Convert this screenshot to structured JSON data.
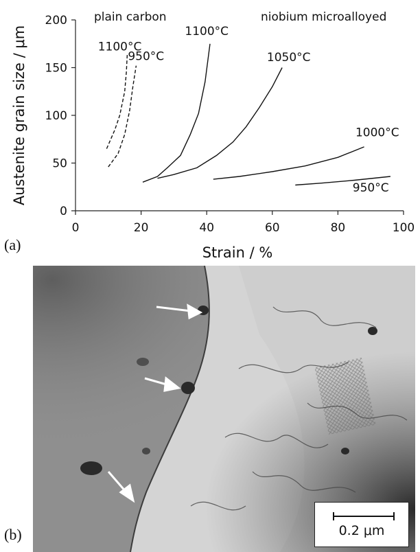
{
  "panels": {
    "a_label": "(a)",
    "b_label": "(b)"
  },
  "chart_data": {
    "type": "line",
    "title": "",
    "xlabel": "Strain / %",
    "ylabel": "Austenite grain size / μm",
    "xlim": [
      0,
      100
    ],
    "ylim": [
      0,
      200
    ],
    "xticks": [
      0,
      20,
      40,
      60,
      80,
      100
    ],
    "yticks": [
      0,
      50,
      100,
      150,
      200
    ],
    "grid": false,
    "group_labels": [
      "plain carbon",
      "niobium microalloyed"
    ],
    "series": [
      {
        "name": "1100°C",
        "group": "plain carbon",
        "dashed": true,
        "x": [
          9.5,
          12,
          13.5,
          15,
          15.5,
          15.8
        ],
        "y": [
          65,
          85,
          100,
          125,
          145,
          165
        ]
      },
      {
        "name": "950°C",
        "group": "plain carbon",
        "dashed": true,
        "x": [
          10,
          13,
          15,
          16.5,
          17.5,
          18.5
        ],
        "y": [
          46,
          60,
          80,
          105,
          130,
          152
        ]
      },
      {
        "name": "1100°C",
        "group": "niobium microalloyed",
        "dashed": false,
        "x": [
          20.5,
          25,
          28,
          32,
          35,
          37.5,
          39.5,
          41
        ],
        "y": [
          30,
          36,
          45,
          58,
          80,
          102,
          135,
          175
        ]
      },
      {
        "name": "1050°C",
        "group": "niobium microalloyed",
        "dashed": false,
        "x": [
          25,
          30,
          37,
          43,
          48,
          52,
          56,
          60,
          63
        ],
        "y": [
          34,
          38,
          45,
          58,
          72,
          88,
          108,
          130,
          150
        ]
      },
      {
        "name": "1000°C",
        "group": "niobium microalloyed",
        "dashed": false,
        "x": [
          42,
          50,
          60,
          70,
          80,
          88
        ],
        "y": [
          33,
          36,
          41,
          47,
          56,
          67
        ]
      },
      {
        "name": "950°C",
        "group": "niobium microalloyed",
        "dashed": false,
        "x": [
          67,
          75,
          85,
          96
        ],
        "y": [
          27,
          29,
          32,
          36
        ]
      }
    ],
    "annotations": [
      {
        "text": "1100°C",
        "x": 13.5,
        "y": 168
      },
      {
        "text": "950°C",
        "x": 21.5,
        "y": 158
      },
      {
        "text": "1100°C",
        "x": 40,
        "y": 184
      },
      {
        "text": "1050°C",
        "x": 65,
        "y": 157
      },
      {
        "text": "1000°C",
        "x": 92,
        "y": 78
      },
      {
        "text": "950°C",
        "x": 90,
        "y": 20
      }
    ]
  },
  "micrograph": {
    "scale_label": "0.2 μm",
    "arrow_count": 3,
    "colors": {
      "matrix_dark": "#8f8f8f",
      "grain_light": "#d9d9d9",
      "arrow": "#ffffff"
    }
  }
}
